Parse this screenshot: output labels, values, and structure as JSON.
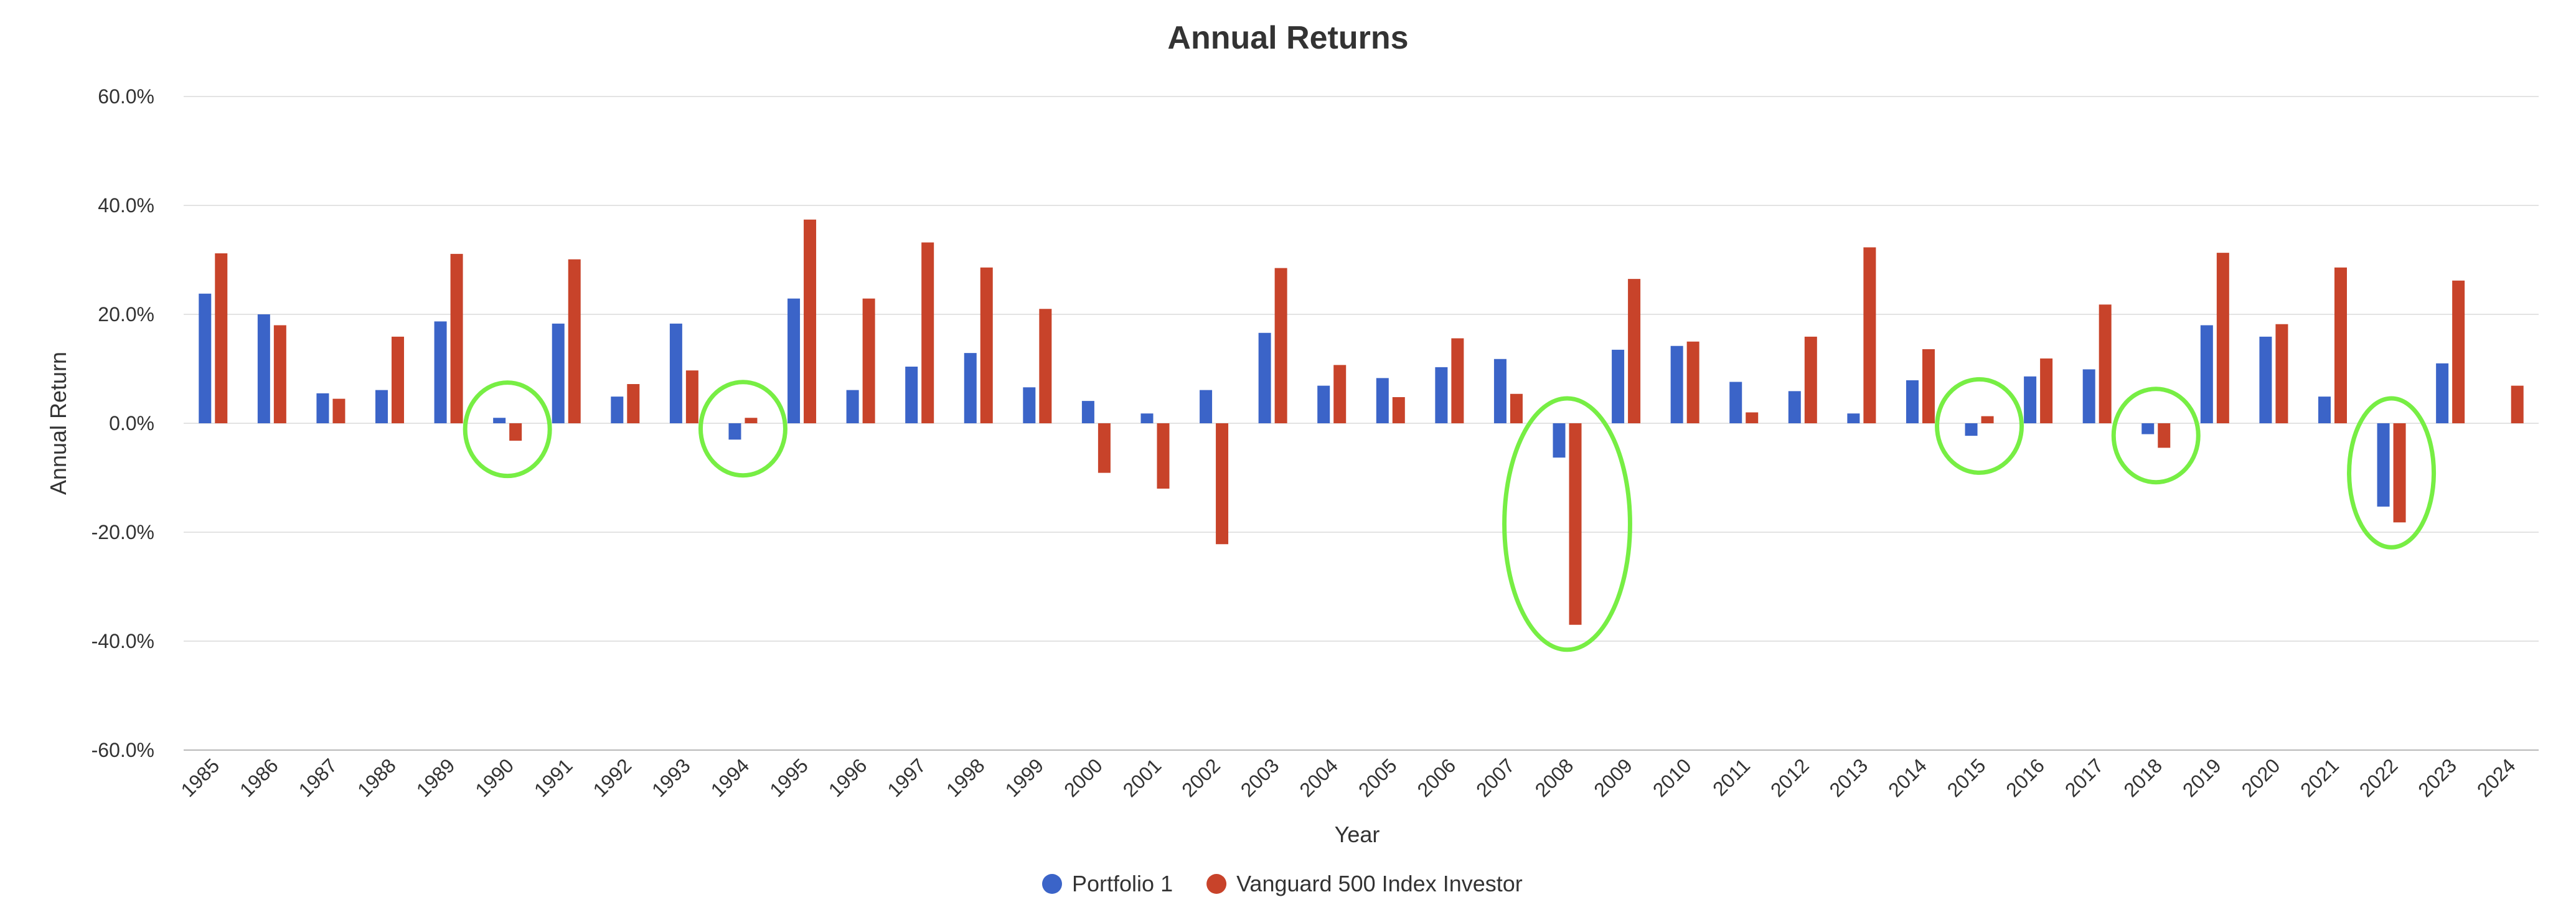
{
  "chart_data": {
    "type": "bar",
    "title": "Annual Returns",
    "xlabel": "Year",
    "ylabel": "Annual Return",
    "ylim": [
      -60,
      60
    ],
    "ytick_step": 20,
    "ytick_format": "percent_1dp",
    "grid": true,
    "legend_position": "bottom-center",
    "categories": [
      "1985",
      "1986",
      "1987",
      "1988",
      "1989",
      "1990",
      "1991",
      "1992",
      "1993",
      "1994",
      "1995",
      "1996",
      "1997",
      "1998",
      "1999",
      "2000",
      "2001",
      "2002",
      "2003",
      "2004",
      "2005",
      "2006",
      "2007",
      "2008",
      "2009",
      "2010",
      "2011",
      "2012",
      "2013",
      "2014",
      "2015",
      "2016",
      "2017",
      "2018",
      "2019",
      "2020",
      "2021",
      "2022",
      "2023",
      "2024"
    ],
    "series": [
      {
        "name": "Portfolio 1",
        "color": "#3b64c8",
        "values": [
          23.8,
          20.0,
          5.5,
          6.1,
          18.7,
          1.0,
          18.3,
          4.9,
          18.3,
          -3.0,
          22.9,
          6.1,
          10.4,
          12.9,
          6.6,
          4.1,
          1.8,
          6.1,
          16.6,
          6.9,
          8.3,
          10.3,
          11.8,
          -6.3,
          13.5,
          14.2,
          7.6,
          5.9,
          1.8,
          7.9,
          -2.3,
          8.6,
          9.9,
          -2.0,
          18.0,
          15.9,
          4.9,
          -15.3,
          11.0,
          null
        ]
      },
      {
        "name": "Vanguard 500 Index Investor",
        "color": "#c8432a",
        "values": [
          31.2,
          18.0,
          4.5,
          15.9,
          31.1,
          -3.2,
          30.1,
          7.2,
          9.7,
          1.0,
          37.4,
          22.9,
          33.2,
          28.6,
          21.0,
          -9.1,
          -12.0,
          -22.2,
          28.5,
          10.7,
          4.8,
          15.6,
          5.4,
          -37.0,
          26.5,
          15.0,
          2.0,
          15.9,
          32.3,
          13.6,
          1.3,
          11.9,
          21.8,
          -4.5,
          31.3,
          18.2,
          28.6,
          -18.2,
          26.2,
          6.9
        ]
      }
    ],
    "annotations": {
      "type": "highlight-circle",
      "color": "#77ee44",
      "years": [
        "1990",
        "1994",
        "2008",
        "2015",
        "2018",
        "2022"
      ]
    }
  }
}
